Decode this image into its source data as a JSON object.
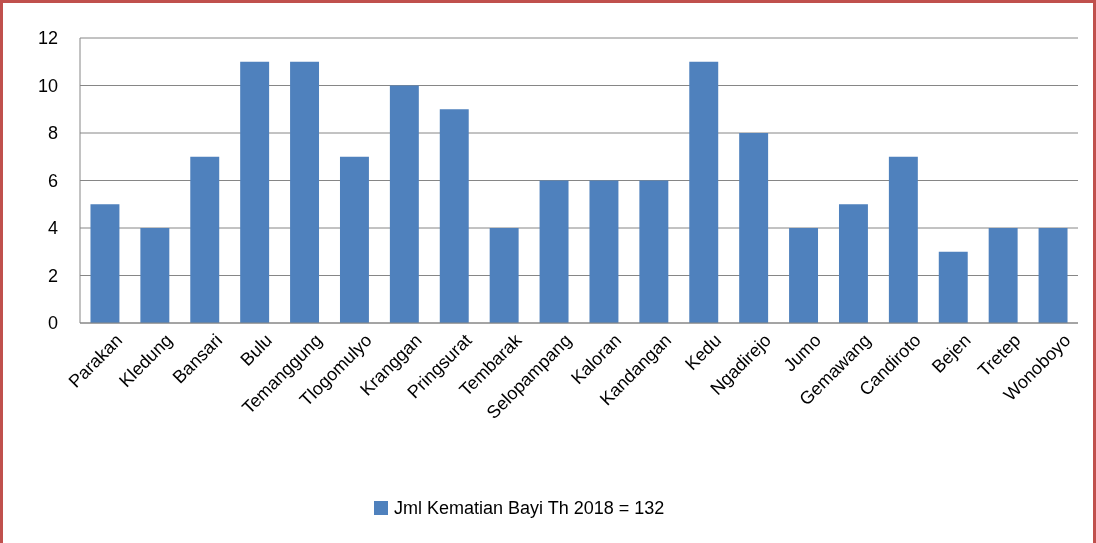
{
  "chart_data": {
    "type": "bar",
    "categories": [
      "Parakan",
      "Kledung",
      "Bansari",
      "Bulu",
      "Temanggung",
      "Tlogomulyo",
      "Kranggan",
      "Pringsurat",
      "Tembarak",
      "Selopampang",
      "Kaloran",
      "Kandangan",
      "Kedu",
      "Ngadirejo",
      "Jumo",
      "Gemawang",
      "Candiroto",
      "Bejen",
      "Tretep",
      "Wonoboyo"
    ],
    "series": [
      {
        "name": "Jml Kematian Bayi Th 2018 = 132",
        "color": "#4f81bd",
        "values": [
          5,
          4,
          7,
          11,
          11,
          7,
          10,
          9,
          4,
          6,
          6,
          6,
          11,
          8,
          4,
          5,
          7,
          3,
          4,
          4
        ]
      }
    ],
    "ylim": [
      0,
      12
    ],
    "yticks": [
      0,
      2,
      4,
      6,
      8,
      10,
      12
    ],
    "grid": "y",
    "legend": "bottom"
  }
}
